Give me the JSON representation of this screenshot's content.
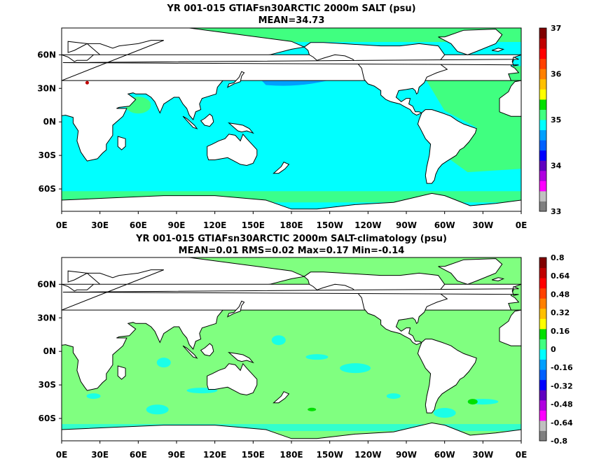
{
  "panels": [
    {
      "title": "YR 001-015 GTIAFsn30ARCTIC 2000m SALT (psu)",
      "subtitle": "MEAN=34.73",
      "ocean_color": "#00ffff",
      "colorbar": {
        "labels": [
          "37",
          "36",
          "35",
          "34",
          "33"
        ],
        "colors": [
          "#808080",
          "#c0c0c0",
          "#ff00ff",
          "#b000e0",
          "#6000c0",
          "#0000ff",
          "#0060ff",
          "#00a0ff",
          "#00ffff",
          "#40ff80",
          "#00e000",
          "#ffff00",
          "#ffc000",
          "#ff8000",
          "#ff4000",
          "#ff0000",
          "#c00000",
          "#800000"
        ]
      }
    },
    {
      "title": "YR 001-015 GTIAFsn30ARCTIC 2000m SALT-climatology (psu)",
      "subtitle": "MEAN=0.01   RMS=0.02   Max=0.17   Min=-0.14",
      "ocean_color": "#80ff80",
      "colorbar": {
        "labels": [
          "0.8",
          "0.64",
          "0.48",
          "0.32",
          "0.16",
          "0",
          "-0.16",
          "-0.32",
          "-0.48",
          "-0.64",
          "-0.8"
        ],
        "colors": [
          "#808080",
          "#c0c0c0",
          "#ff00ff",
          "#b000e0",
          "#6000c0",
          "#0000ff",
          "#0060ff",
          "#00a0ff",
          "#00ffff",
          "#40ff80",
          "#00e000",
          "#ffff00",
          "#ffc000",
          "#ff8000",
          "#ff4000",
          "#ff0000",
          "#c00000",
          "#800000"
        ]
      }
    }
  ],
  "x_tick_labels": [
    "0E",
    "30E",
    "60E",
    "90E",
    "120E",
    "150E",
    "180E",
    "150W",
    "120W",
    "90W",
    "60W",
    "30W",
    "0E"
  ],
  "y_tick_labels": [
    "60N",
    "30N",
    "0N",
    "30S",
    "60S"
  ],
  "land_color": "#ffffff",
  "coast_color": "#000000",
  "anomaly_colors": {
    "fresh_north_pacific": "#00a0ff",
    "salty_atlantic": "#40ff80",
    "high_med": "#c00000",
    "low_anom": "#00ffff",
    "high_anom": "#00e000"
  }
}
